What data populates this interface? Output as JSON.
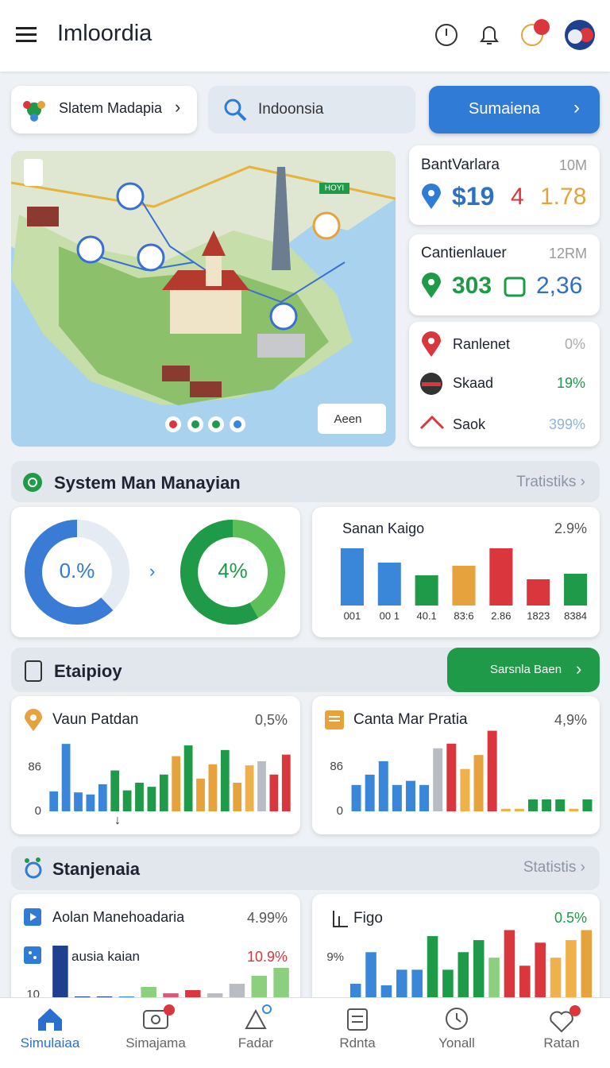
{
  "header": {
    "title": "Imloordia"
  },
  "toolbar": {
    "chip": "Slatem Madapia",
    "search": "Indoonsia",
    "button": "Sumaiena"
  },
  "map": {
    "badge": "HOYI",
    "button": "Aeen"
  },
  "stats": [
    {
      "title": "BantVarlara",
      "tag": "10M",
      "values": [
        "$19",
        "4",
        "1.78"
      ]
    },
    {
      "title": "Cantienlauer",
      "tag": "12RM",
      "values": [
        "303",
        "2,36"
      ]
    }
  ],
  "list": [
    {
      "name": "Ranlenet",
      "value": "0%"
    },
    {
      "name": "Skaad",
      "value": "19%"
    },
    {
      "name": "Saok",
      "value": "399%"
    }
  ],
  "sections": [
    {
      "title": "System Man Manayian",
      "link": "Tratistiks"
    },
    {
      "title": "Etaipioy",
      "button": "Sarsnla Baen"
    },
    {
      "title": "Stanjenaia",
      "link": "Statistis"
    }
  ],
  "donuts": [
    {
      "label": "0.%",
      "value": 62,
      "color": "#3a7bd5"
    },
    {
      "label": "4%",
      "value": 58,
      "color": "#1e9a48"
    }
  ],
  "charts": [
    {
      "type": "bar",
      "title": "Sanan Kaigo",
      "note": "2.9%",
      "categories": [
        "001",
        "00 1",
        "40.1",
        "83:6",
        "2.86",
        "1823",
        "8384"
      ],
      "values": [
        72,
        54,
        38,
        50,
        72,
        33,
        40
      ],
      "colors": [
        "#3a86d8",
        "#3a86d8",
        "#1e9a48",
        "#e6a23c",
        "#d9363e",
        "#d9363e",
        "#1e9a48"
      ],
      "ylim": [
        0,
        80
      ]
    },
    {
      "type": "bar",
      "title": "Vaun Patdan",
      "note": "0,5%",
      "values": [
        39,
        132,
        37,
        33,
        53,
        80,
        41,
        56,
        48,
        72,
        108,
        129,
        64,
        92,
        120,
        56,
        90,
        98,
        72,
        111
      ],
      "colors": [
        "#3a86d8",
        "#3a86d8",
        "#3a86d8",
        "#3a86d8",
        "#3a86d8",
        "#1e9a48",
        "#1e9a48",
        "#1e9a48",
        "#1e9a48",
        "#1e9a48",
        "#e6a23c",
        "#1e9a48",
        "#e6a23c",
        "#e6a23c",
        "#1e9a48",
        "#e6a23c",
        "#f0b04a",
        "#b9bcc2",
        "#d9363e",
        "#d9363e"
      ],
      "ylim": [
        0,
        140
      ],
      "yticks": [
        0,
        86
      ]
    },
    {
      "type": "bar",
      "title": "Canta Mar Pratia",
      "note": "4,9%",
      "values": [
        51,
        71,
        97,
        51,
        59,
        51,
        122,
        131,
        82,
        109,
        156,
        5,
        5,
        23,
        23,
        23,
        5,
        23
      ],
      "colors": [
        "#3a86d8",
        "#3a86d8",
        "#3a86d8",
        "#3a86d8",
        "#3a86d8",
        "#3a86d8",
        "#b9bcc2",
        "#d9363e",
        "#f0b04a",
        "#e6a23c",
        "#d9363e",
        "#f0b04a",
        "#f0b04a",
        "#1e9a48",
        "#1e9a48",
        "#1e9a48",
        "#f0b04a",
        "#1e9a48"
      ],
      "ylim": [
        0,
        160
      ],
      "yticks": [
        0,
        86
      ]
    },
    {
      "type": "bar",
      "title": "Aolan Manehoadaria",
      "note": "4.99%",
      "subtitle": "ausia kaian",
      "subnote": "10.9%",
      "values": [
        72,
        8,
        8,
        8,
        20,
        12,
        16,
        12,
        24,
        34,
        44
      ],
      "colors": [
        "#1f3f8f",
        "#1f3f8f",
        "#1f3f8f",
        "#3a86d8",
        "#8ccf7e",
        "#d9587a",
        "#d9363e",
        "#b9bcc2",
        "#b9bcc2",
        "#8ccf7e",
        "#8ccf7e"
      ],
      "ylim": [
        0,
        100
      ],
      "yticks": [
        10
      ]
    },
    {
      "type": "bar",
      "title": "Figo",
      "note": "0.5%",
      "values": [
        3.8,
        10.1,
        3.5,
        6.6,
        6.6,
        13.3,
        6.6,
        10.1,
        12.5,
        9,
        14.5,
        7.4,
        12,
        9,
        12.5,
        14.5
      ],
      "colors": [
        "#3a86d8",
        "#3a86d8",
        "#3a86d8",
        "#3a86d8",
        "#3a86d8",
        "#1e9a48",
        "#1e9a48",
        "#1e9a48",
        "#1e9a48",
        "#8ccf7e",
        "#d9363e",
        "#d9363e",
        "#d9363e",
        "#f0b04a",
        "#f0b04a",
        "#e6a23c"
      ],
      "ylim": [
        0,
        16
      ],
      "yticks": [
        {
          "value": 9,
          "label": "9%"
        }
      ]
    }
  ],
  "nav": [
    "Simulaiaa",
    "Simajama",
    "Fadar",
    "Rdnta",
    "Yonall",
    "Ratan"
  ]
}
